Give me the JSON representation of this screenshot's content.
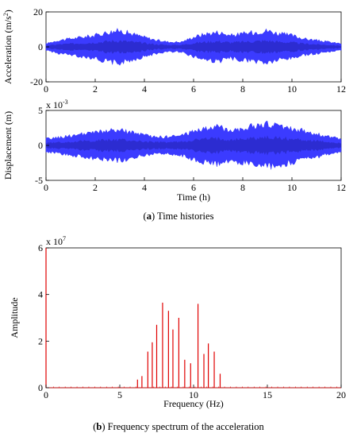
{
  "colors": {
    "signal": "#3b3bff",
    "signal_dark": "#1a1a99",
    "spectrum": "#e00000",
    "axis": "#000000"
  },
  "captions": {
    "a_tag": "a",
    "a_text": ") Time histories",
    "b_tag": "b",
    "b_text": ") Frequency spectrum of the acceleration"
  },
  "chart_data": [
    {
      "type": "area",
      "ylabel": "Acceleration (m/s",
      "ylabel_sup": "2",
      "ylabel_close": ")",
      "xlim": [
        0,
        12
      ],
      "ylim": [
        -20,
        20
      ],
      "xticks": [
        "0",
        "2",
        "4",
        "6",
        "8",
        "10",
        "12"
      ],
      "yticks": [
        "-20",
        "0",
        "20"
      ],
      "grid": false,
      "envelope": {
        "t_hours": [
          0,
          0.5,
          1,
          1.5,
          2,
          2.5,
          3,
          3.5,
          4,
          4.5,
          5,
          5.5,
          6,
          6.5,
          7,
          7.5,
          8,
          8.5,
          9,
          9.5,
          10,
          10.5,
          11,
          11.5,
          12
        ],
        "amplitude": [
          2,
          4,
          5,
          6,
          7,
          9,
          10,
          8,
          6,
          4,
          3,
          3,
          6,
          8,
          9,
          7,
          8,
          9,
          10,
          8,
          7,
          5,
          4,
          3,
          2
        ]
      }
    },
    {
      "type": "area",
      "ylabel": "Displacement (m)",
      "exponent_base": "x 10",
      "exponent": "-3",
      "xlabel": "Time (h)",
      "xlim": [
        0,
        12
      ],
      "ylim": [
        -5,
        5
      ],
      "xticks": [
        "0",
        "2",
        "4",
        "6",
        "8",
        "10",
        "12"
      ],
      "yticks": [
        "-5",
        "0",
        "5"
      ],
      "grid": false,
      "envelope": {
        "t_hours": [
          0,
          0.5,
          1,
          1.5,
          2,
          2.5,
          3,
          3.5,
          4,
          4.5,
          5,
          5.5,
          6,
          6.5,
          7,
          7.5,
          8,
          8.5,
          9,
          9.5,
          10,
          10.5,
          11,
          11.5,
          12
        ],
        "amplitude": [
          1.0,
          1.2,
          1.5,
          1.7,
          2.0,
          2.2,
          2.3,
          2.0,
          1.5,
          1.3,
          1.3,
          1.5,
          2.2,
          2.6,
          2.8,
          2.4,
          2.6,
          3.0,
          3.2,
          3.0,
          2.6,
          2.2,
          1.8,
          1.3,
          1.0
        ]
      }
    },
    {
      "type": "bar",
      "ylabel": "Amplitude",
      "xlabel": "Frequency (Hz)",
      "exponent_base": "x 10",
      "exponent": "7",
      "xlim": [
        0,
        20
      ],
      "ylim": [
        0,
        6
      ],
      "xticks": [
        "0",
        "5",
        "10",
        "15",
        "20"
      ],
      "yticks": [
        "0",
        "2",
        "4",
        "6"
      ],
      "grid": false,
      "peaks": {
        "freq_hz": [
          0,
          6.2,
          6.5,
          6.9,
          7.2,
          7.5,
          7.9,
          8.3,
          8.6,
          9.0,
          9.4,
          9.8,
          10.3,
          10.7,
          11.0,
          11.4,
          11.8
        ],
        "amplitude_1e7": [
          6.0,
          0.35,
          0.5,
          1.55,
          1.95,
          2.7,
          3.65,
          3.3,
          2.5,
          3.0,
          1.2,
          1.05,
          3.6,
          1.45,
          1.9,
          1.55,
          0.6
        ]
      }
    }
  ]
}
